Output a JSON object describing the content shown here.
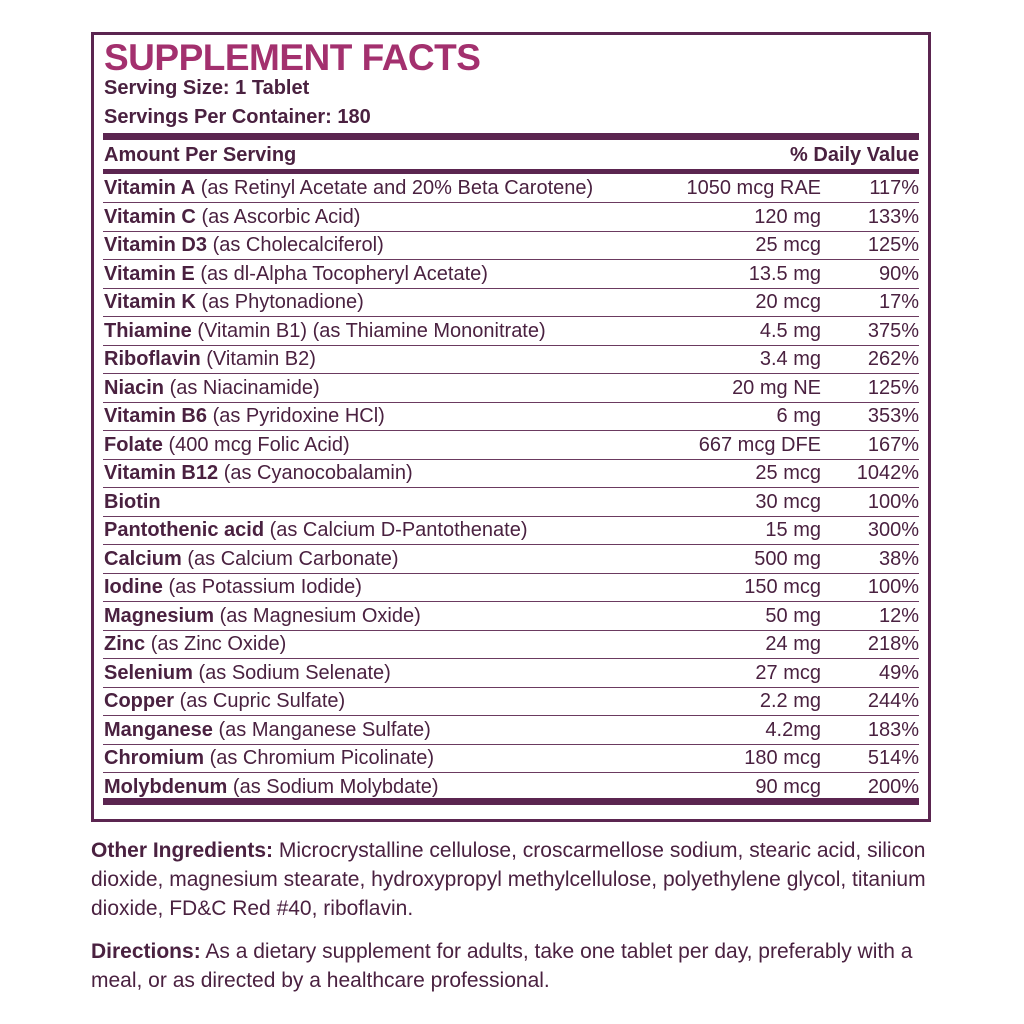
{
  "header": {
    "title": "SUPPLEMENT FACTS",
    "serving_size": "Serving Size: 1 Tablet",
    "servings_per_container": "Servings Per Container: 180"
  },
  "table": {
    "columns": [
      "Amount Per Serving",
      "% Daily Value"
    ],
    "rows": [
      {
        "name": "Vitamin A",
        "desc": "(as Retinyl Acetate and 20% Beta Carotene)",
        "amount": "1050 mcg RAE",
        "dv": "117%"
      },
      {
        "name": "Vitamin C",
        "desc": "(as Ascorbic Acid)",
        "amount": "120 mg",
        "dv": "133%"
      },
      {
        "name": "Vitamin D3",
        "desc": "(as Cholecalciferol)",
        "amount": "25 mcg",
        "dv": "125%"
      },
      {
        "name": "Vitamin E",
        "desc": "(as dl-Alpha Tocopheryl Acetate)",
        "amount": "13.5 mg",
        "dv": "90%"
      },
      {
        "name": "Vitamin K",
        "desc": "(as Phytonadione)",
        "amount": "20 mcg",
        "dv": "17%"
      },
      {
        "name": "Thiamine",
        "desc": "(Vitamin B1) (as Thiamine Mononitrate)",
        "amount": "4.5 mg",
        "dv": "375%"
      },
      {
        "name": "Riboflavin",
        "desc": "(Vitamin B2)",
        "amount": "3.4 mg",
        "dv": "262%"
      },
      {
        "name": "Niacin",
        "desc": "(as Niacinamide)",
        "amount": "20 mg NE",
        "dv": "125%"
      },
      {
        "name": "Vitamin B6",
        "desc": "(as Pyridoxine HCl)",
        "amount": "6 mg",
        "dv": "353%"
      },
      {
        "name": "Folate",
        "desc": "(400 mcg Folic Acid)",
        "amount": "667 mcg DFE",
        "dv": "167%"
      },
      {
        "name": "Vitamin B12",
        "desc": "(as Cyanocobalamin)",
        "amount": "25 mcg",
        "dv": "1042%"
      },
      {
        "name": "Biotin",
        "amount": "30 mcg",
        "dv": "100%"
      },
      {
        "name": "Pantothenic acid",
        "desc": "(as Calcium D-Pantothenate)",
        "amount": "15 mg",
        "dv": "300%"
      },
      {
        "name": "Calcium",
        "desc": "(as Calcium Carbonate)",
        "amount": "500 mg",
        "dv": "38%"
      },
      {
        "name": "Iodine",
        "desc": "(as Potassium Iodide)",
        "amount": "150 mcg",
        "dv": "100%"
      },
      {
        "name": "Magnesium",
        "desc": "(as Magnesium Oxide)",
        "amount": "50 mg",
        "dv": "12%"
      },
      {
        "name": "Zinc",
        "desc": "(as Zinc Oxide)",
        "amount": "24 mg",
        "dv": "218%"
      },
      {
        "name": "Selenium",
        "desc": "(as Sodium Selenate)",
        "amount": "27 mcg",
        "dv": "49%"
      },
      {
        "name": "Copper",
        "desc": "(as Cupric Sulfate)",
        "amount": "2.2 mg",
        "dv": "244%"
      },
      {
        "name": "Manganese",
        "desc": "(as Manganese Sulfate)",
        "amount": "4.2mg",
        "dv": "183%"
      },
      {
        "name": "Chromium",
        "desc": "(as Chromium Picolinate)",
        "amount": "180 mcg",
        "dv": "514%"
      },
      {
        "name": "Molybdenum",
        "desc": "(as Sodium Molybdate)",
        "amount": "90 mcg",
        "dv": "200%"
      }
    ]
  },
  "notes": [
    {
      "label": "Other Ingredients:",
      "text": "Microcrystalline cellulose, croscarmellose sodium, stearic acid, silicon dioxide, magnesium stearate, hydroxypropyl methylcellulose, polyethylene glycol, titanium dioxide, FD&C Red #40, riboflavin."
    },
    {
      "label": "Directions:",
      "text": "As a dietary supplement for adults, take one tablet per day, preferably with a meal, or as directed by a healthcare professional."
    }
  ]
}
